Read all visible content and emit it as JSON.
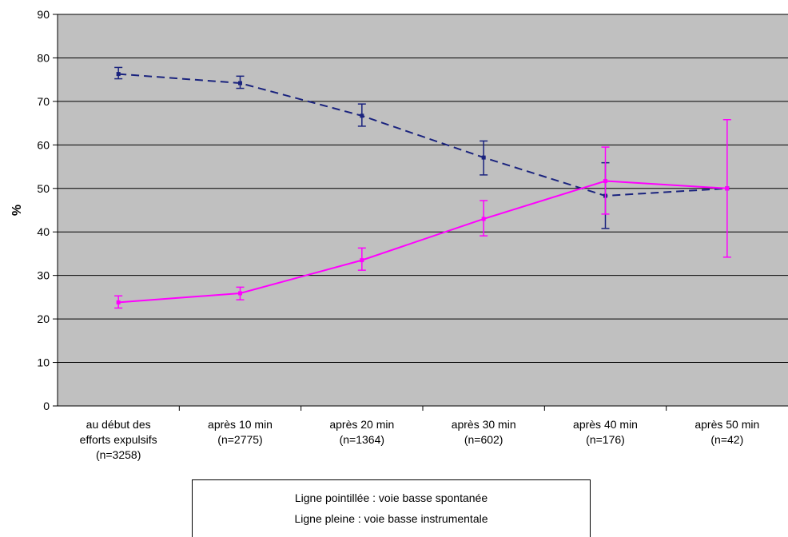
{
  "chart_data": {
    "type": "line",
    "ylabel": "%",
    "ylim": [
      0,
      90
    ],
    "yticks": [
      0,
      10,
      20,
      30,
      40,
      50,
      60,
      70,
      80,
      90
    ],
    "grid": true,
    "background_color": "#c0c0c0",
    "categories": [
      [
        "au début des",
        "efforts expulsifs",
        "(n=3258)"
      ],
      [
        "après 10 min",
        "(n=2775)"
      ],
      [
        "après 20 min",
        "(n=1364)"
      ],
      [
        "après 30 min",
        "(n=602)"
      ],
      [
        "après 40 min",
        "(n=176)"
      ],
      [
        "après 50 min",
        "(n=42)"
      ]
    ],
    "series": [
      {
        "style": "dashed",
        "color": "#1a237e",
        "values": [
          76.3,
          74.2,
          66.7,
          57.1,
          48.3,
          50.0
        ],
        "error_low": [
          75.2,
          73.0,
          64.3,
          53.1,
          40.8,
          50.0
        ],
        "error_high": [
          77.8,
          75.8,
          69.4,
          60.9,
          55.9,
          50.0
        ]
      },
      {
        "style": "solid",
        "color": "#ff00ff",
        "values": [
          23.8,
          25.9,
          33.5,
          43.0,
          51.7,
          50.0
        ],
        "error_low": [
          22.5,
          24.4,
          31.2,
          39.1,
          44.1,
          34.2
        ],
        "error_high": [
          25.3,
          27.3,
          36.3,
          47.2,
          59.5,
          65.8
        ]
      }
    ],
    "legend": {
      "position": "bottom",
      "lines": [
        "Ligne pointillée : voie basse spontanée",
        "Ligne pleine : voie basse instrumentale"
      ]
    }
  }
}
